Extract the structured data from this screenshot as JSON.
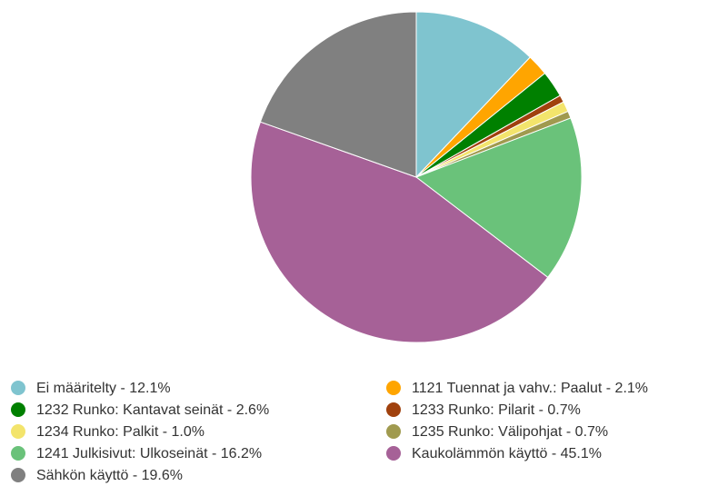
{
  "chart_data": {
    "type": "pie",
    "categories": [
      "Ei määritelty - 12.1%",
      "1121 Tuennat ja vahv.: Paalut - 2.1%",
      "1232 Runko: Kantavat seinät - 2.6%",
      "1233 Runko: Pilarit - 0.7%",
      "1234 Runko: Palkit - 1.0%",
      "1235 Runko: Välipohjat - 0.7%",
      "1241 Julkisivut: Ulkoseinät - 16.2%",
      "Kaukolämmön käyttö - 45.1%",
      "Sähkön käyttö - 19.6%"
    ],
    "values": [
      12.1,
      2.1,
      2.6,
      0.7,
      1.0,
      0.7,
      16.2,
      45.1,
      19.6
    ],
    "colors": [
      "#7fc4cf",
      "#ffa500",
      "#008000",
      "#a0410d",
      "#f3e46c",
      "#a09a4f",
      "#6ac27a",
      "#a66197",
      "#808080"
    ]
  }
}
